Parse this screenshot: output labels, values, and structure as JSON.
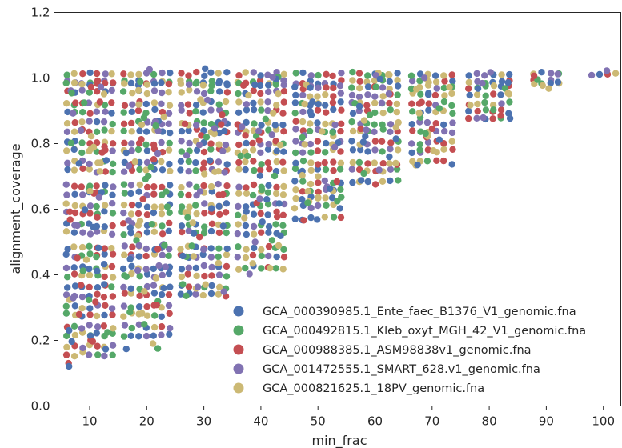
{
  "chart_data": {
    "type": "scatter",
    "style": "swarm",
    "xlabel": "min_frac",
    "ylabel": "alignment_coverage",
    "categories": [
      10,
      20,
      30,
      40,
      50,
      60,
      70,
      80,
      90,
      100
    ],
    "x_tick_labels": [
      "10",
      "20",
      "30",
      "40",
      "50",
      "60",
      "70",
      "80",
      "90",
      "100"
    ],
    "ylim": [
      0.0,
      1.2
    ],
    "y_ticks": [
      0.0,
      0.2,
      0.4,
      0.6,
      0.8,
      1.0,
      1.2
    ],
    "y_tick_labels": [
      "0.0",
      "0.2",
      "0.4",
      "0.6",
      "0.8",
      "1.0",
      "1.2"
    ],
    "grid": false,
    "legend_position": "lower-right",
    "series": [
      {
        "name": "GCA_000390985.1_Ente_faec_B1376_V1_genomic.fna",
        "color": "#4c72b0"
      },
      {
        "name": "GCA_000492815.1_Kleb_oxyt_MGH_42_V1_genomic.fna",
        "color": "#55a868"
      },
      {
        "name": "GCA_000988385.1_ASM98838v1_genomic.fna",
        "color": "#c44e52"
      },
      {
        "name": "GCA_001472555.1_SMART_628.v1_genomic.fna",
        "color": "#8172b2"
      },
      {
        "name": "GCA_000821625.1_18PV_genomic.fna",
        "color": "#ccb974"
      }
    ],
    "groups": [
      {
        "x": 10,
        "y_min": 0.12,
        "y_max": 1.03,
        "levels": [
          1.0,
          0.97,
          0.91,
          0.85,
          0.79,
          0.73,
          0.66,
          0.6,
          0.54,
          0.47,
          0.41,
          0.35,
          0.29,
          0.23,
          0.17
        ]
      },
      {
        "x": 20,
        "y_min": 0.17,
        "y_max": 1.03,
        "levels": [
          1.0,
          0.97,
          0.91,
          0.85,
          0.79,
          0.73,
          0.66,
          0.6,
          0.54,
          0.47,
          0.41,
          0.35,
          0.29,
          0.23
        ]
      },
      {
        "x": 30,
        "y_min": 0.33,
        "y_max": 1.03,
        "levels": [
          1.0,
          0.97,
          0.91,
          0.85,
          0.79,
          0.73,
          0.66,
          0.6,
          0.54,
          0.47,
          0.41,
          0.35
        ]
      },
      {
        "x": 40,
        "y_min": 0.4,
        "y_max": 1.03,
        "levels": [
          1.0,
          0.97,
          0.91,
          0.85,
          0.79,
          0.73,
          0.66,
          0.6,
          0.54,
          0.47,
          0.41
        ]
      },
      {
        "x": 50,
        "y_min": 0.55,
        "y_max": 1.02,
        "levels": [
          1.0,
          0.96,
          0.91,
          0.85,
          0.79,
          0.73,
          0.67,
          0.62,
          0.56
        ]
      },
      {
        "x": 60,
        "y_min": 0.66,
        "y_max": 1.02,
        "levels": [
          1.0,
          0.96,
          0.91,
          0.85,
          0.79,
          0.73,
          0.67
        ]
      },
      {
        "x": 70,
        "y_min": 0.72,
        "y_max": 1.02,
        "levels": [
          1.0,
          0.96,
          0.91,
          0.85,
          0.79,
          0.73
        ]
      },
      {
        "x": 80,
        "y_min": 0.85,
        "y_max": 1.02,
        "levels": [
          1.0,
          0.96,
          0.91,
          0.86
        ]
      },
      {
        "x": 90,
        "y_min": 0.96,
        "y_max": 1.02,
        "levels": [
          1.0,
          0.97
        ]
      },
      {
        "x": 100,
        "y_min": 1.01,
        "y_max": 1.03,
        "levels": [
          1.0
        ]
      }
    ]
  }
}
